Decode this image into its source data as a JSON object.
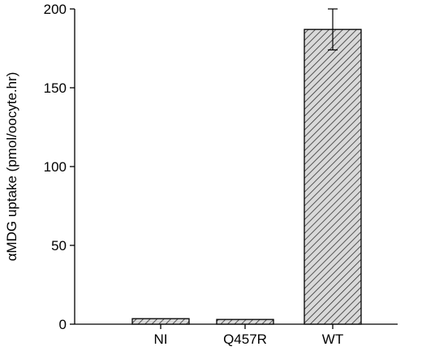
{
  "chart_data": {
    "type": "bar",
    "categories": [
      "NI",
      "Q457R",
      "WT"
    ],
    "values": [
      3.5,
      3,
      187
    ],
    "error_bars": [
      null,
      null,
      13
    ],
    "ylabel": "αMDG uptake (pmol/oocyte.hr)",
    "xlabel": "",
    "ylim": [
      0,
      200
    ],
    "yticks": [
      0,
      50,
      100,
      150,
      200
    ],
    "grid": false,
    "bar_fill": "hatched",
    "colors": {
      "bar_fill": "#d9d9d9",
      "hatch": "#333333",
      "stroke": "#000000"
    }
  }
}
